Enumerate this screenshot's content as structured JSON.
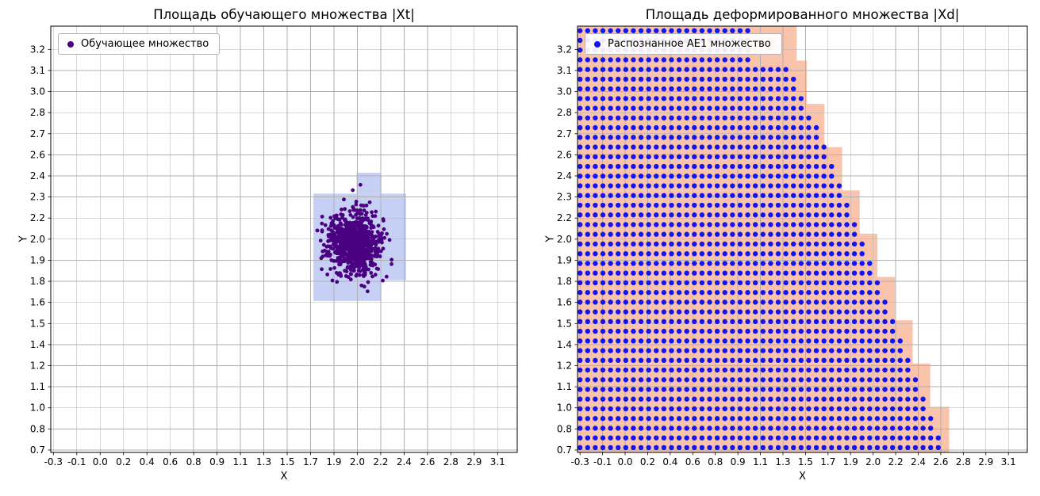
{
  "figure": {
    "background": "#ffffff"
  },
  "chart_data": [
    {
      "type": "scatter",
      "title": "Площадь обучающего множества |Xt|",
      "xlabel": "X",
      "ylabel": "Y",
      "grid": true,
      "grid_color": "#b0b0b0",
      "legend": {
        "label": "Обучающее множество",
        "marker_color": "#4b0082",
        "position": "upper left"
      },
      "xlim": [
        -0.32,
        3.25
      ],
      "ylim": [
        0.685,
        3.345
      ],
      "xticks": {
        "first": -0.3,
        "last": 3.1,
        "labels": [
          "-0.3",
          "-0.1",
          "0.0",
          "0.2",
          "0.4",
          "0.6",
          "0.8",
          "0.9",
          "1.1",
          "1.3",
          "1.5",
          "1.7",
          "1.9",
          "2.0",
          "2.2",
          "2.4",
          "2.6",
          "2.8",
          "2.9",
          "3.1"
        ]
      },
      "yticks": {
        "first": 0.7,
        "last": 3.2,
        "labels": [
          "0.7",
          "0.8",
          "1.0",
          "1.1",
          "1.2",
          "1.4",
          "1.5",
          "1.6",
          "1.8",
          "1.9",
          "2.0",
          "2.2",
          "2.3",
          "2.4",
          "2.6",
          "2.7",
          "2.8",
          "3.0",
          "3.1",
          "3.2"
        ]
      },
      "shaded_region": {
        "color": "#c6d0f4",
        "rects": [
          {
            "x0": 1.69,
            "y0": 1.76,
            "x1": 2.4,
            "y1": 2.3
          },
          {
            "x0": 2.02,
            "y0": 2.3,
            "x1": 2.21,
            "y1": 2.43
          },
          {
            "x0": 1.69,
            "y0": 1.63,
            "x1": 2.21,
            "y1": 1.76
          }
        ]
      },
      "series": [
        {
          "name": "Обучающее множество",
          "kind": "gaussian_cluster",
          "center": [
            2.0,
            1.99
          ],
          "std": [
            0.1,
            0.095
          ],
          "n": 800,
          "seed": 20,
          "color": "#4b0082",
          "marker_radius": 2.4,
          "extra_points": [
            [
              2.05,
              2.355
            ],
            [
              2.08,
              1.72
            ],
            [
              1.72,
              2.07
            ]
          ]
        }
      ]
    },
    {
      "type": "scatter",
      "title": "Площадь деформированного множества |Xd|",
      "xlabel": "X",
      "ylabel": "Y",
      "grid": true,
      "grid_color": "#b0b0b0",
      "legend": {
        "label": "Распознанное AE1 множество",
        "marker_color": "#1414ee",
        "position": "upper left"
      },
      "xlim": [
        -0.32,
        3.25
      ],
      "ylim": [
        0.685,
        3.345
      ],
      "xticks": {
        "first": -0.3,
        "last": 3.1,
        "labels": [
          "-0.3",
          "-0.1",
          "0.0",
          "0.2",
          "0.4",
          "0.6",
          "0.8",
          "0.9",
          "1.1",
          "1.3",
          "1.5",
          "1.7",
          "1.9",
          "2.0",
          "2.2",
          "2.4",
          "2.6",
          "2.8",
          "2.9",
          "3.1"
        ]
      },
      "yticks": {
        "first": 0.7,
        "last": 3.2,
        "labels": [
          "0.7",
          "0.8",
          "1.0",
          "1.1",
          "1.2",
          "1.4",
          "1.5",
          "1.6",
          "1.8",
          "1.9",
          "2.0",
          "2.2",
          "2.3",
          "2.4",
          "2.6",
          "2.7",
          "2.8",
          "3.0",
          "3.1",
          "3.2"
        ]
      },
      "shaded_region": {
        "color": "#f9c4ab",
        "x_min": -0.32,
        "steps": [
          {
            "y0": 3.13,
            "y1": 3.345,
            "x_max": 1.42
          },
          {
            "y0": 2.86,
            "y1": 3.13,
            "x_max": 1.5
          },
          {
            "y0": 2.59,
            "y1": 2.86,
            "x_max": 1.64
          },
          {
            "y0": 2.32,
            "y1": 2.59,
            "x_max": 1.78
          },
          {
            "y0": 2.05,
            "y1": 2.32,
            "x_max": 1.92
          },
          {
            "y0": 1.78,
            "y1": 2.05,
            "x_max": 2.06
          },
          {
            "y0": 1.51,
            "y1": 1.78,
            "x_max": 2.2
          },
          {
            "y0": 1.24,
            "y1": 1.51,
            "x_max": 2.34
          },
          {
            "y0": 0.97,
            "y1": 1.24,
            "x_max": 2.48
          },
          {
            "y0": 0.685,
            "y1": 0.97,
            "x_max": 2.63
          }
        ]
      },
      "series": [
        {
          "name": "Распознанное AE1 множество",
          "kind": "dot_grid",
          "color": "#1414ee",
          "marker_radius": 3.2,
          "spacing": 0.0605,
          "x_start": -0.3,
          "y_start": 0.715,
          "y_end": 3.33,
          "boundary": {
            "x_top": 1.08,
            "y_break": 3.13,
            "x_at_break": 1.36,
            "slope": 0.515,
            "x_max": 2.6
          }
        }
      ]
    }
  ]
}
